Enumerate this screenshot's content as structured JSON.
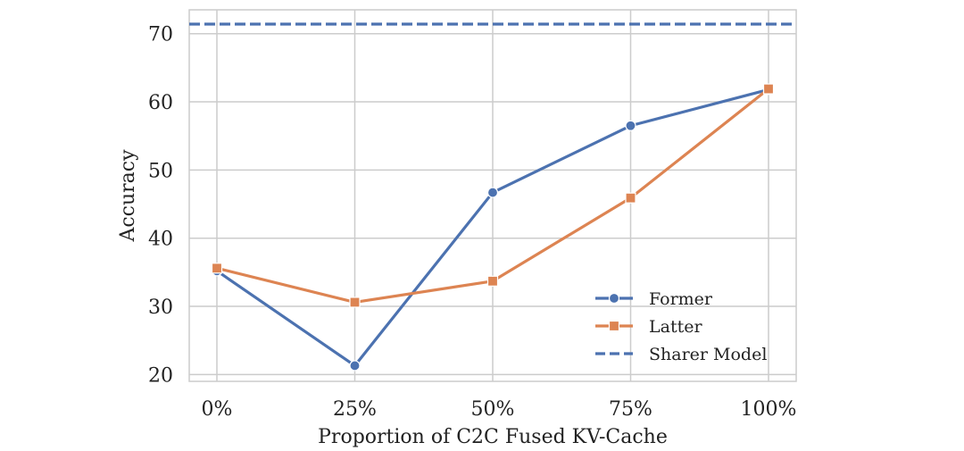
{
  "chart_data": {
    "type": "line",
    "title": "",
    "xlabel": "Proportion of C2C Fused KV-Cache",
    "ylabel": "Accuracy",
    "categories": [
      "0%",
      "25%",
      "50%",
      "75%",
      "100%"
    ],
    "ylim": [
      19,
      73.5
    ],
    "yticks": [
      20,
      30,
      40,
      50,
      60,
      70
    ],
    "grid": true,
    "legend_position": "lower-right",
    "series": [
      {
        "name": "Former",
        "values": [
          35.2,
          21.3,
          46.7,
          56.5,
          61.8
        ],
        "color": "#4c72b0",
        "marker": "circle",
        "linestyle": "solid"
      },
      {
        "name": "Latter",
        "values": [
          35.6,
          30.6,
          33.7,
          45.9,
          61.9
        ],
        "color": "#dd8452",
        "marker": "square",
        "linestyle": "solid"
      }
    ],
    "reference_lines": [
      {
        "name": "Sharer Model",
        "value": 71.4,
        "color": "#4c72b0",
        "linestyle": "dashed"
      }
    ]
  }
}
